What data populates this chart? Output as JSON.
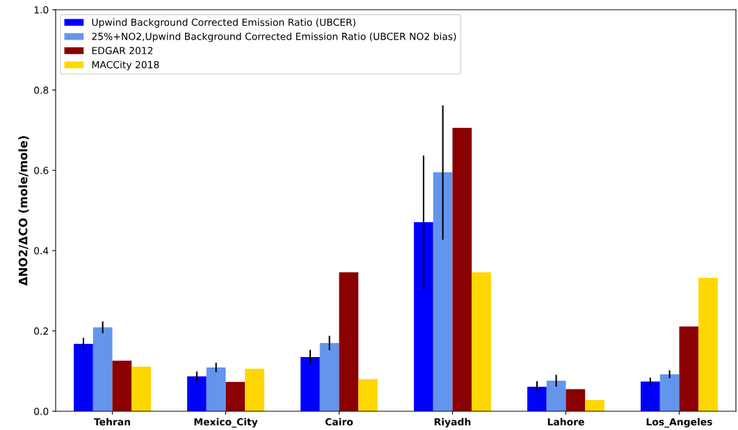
{
  "chart_data": {
    "type": "bar",
    "ylabel": "ΔNO2/ΔCO (mole/mole)",
    "categories": [
      "Tehran",
      "Mexico_City",
      "Cairo",
      "Riyadh",
      "Lahore",
      "Los_Angeles"
    ],
    "series": [
      {
        "name": "Upwind Background Corrected Emission Ratio (UBCER)",
        "color": "#0000ff",
        "values": [
          0.168,
          0.087,
          0.135,
          0.471,
          0.061,
          0.074
        ],
        "errors": [
          0.013,
          0.01,
          0.016,
          [
            0.306,
            0.635
          ],
          0.012,
          0.008
        ]
      },
      {
        "name": "25%+NO2,Upwind Background Corrected Emission Ratio (UBCER NO2 bias)",
        "color": "#6495ed",
        "values": [
          0.209,
          0.109,
          0.17,
          0.595,
          0.076,
          0.092
        ],
        "errors": [
          0.013,
          0.01,
          0.016,
          [
            0.429,
            0.76
          ],
          0.013,
          0.008
        ]
      },
      {
        "name": "EDGAR 2012",
        "color": "#8b0000",
        "values": [
          0.126,
          0.073,
          0.346,
          0.706,
          0.055,
          0.211
        ]
      },
      {
        "name": "MACCity 2018",
        "color": "#ffd700",
        "values": [
          0.111,
          0.106,
          0.08,
          0.346,
          0.028,
          0.332
        ]
      }
    ],
    "ylim": [
      0,
      1.0
    ],
    "yticks": [
      {
        "value": 0,
        "label": "0.0"
      },
      {
        "value": 0.2,
        "label": "0.2"
      },
      {
        "value": 0.4,
        "label": "0.4"
      },
      {
        "value": 0.6,
        "label": "0.6"
      },
      {
        "value": 0.8,
        "label": "0.8"
      },
      {
        "value": 1.0,
        "label": "1.0"
      }
    ],
    "grid": false,
    "legend": "top left"
  }
}
